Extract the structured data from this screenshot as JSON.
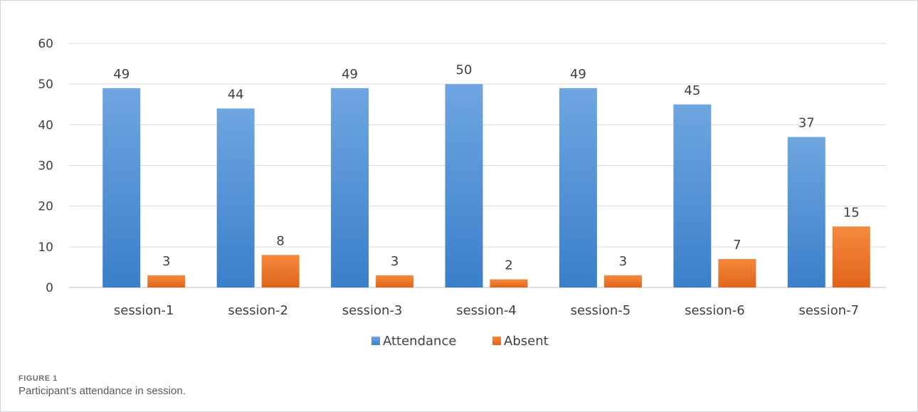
{
  "chart_data": {
    "type": "bar",
    "categories": [
      "session-1",
      "session-2",
      "session-3",
      "session-4",
      "session-5",
      "session-6",
      "session-7"
    ],
    "series": [
      {
        "name": "Attendance",
        "values": [
          49,
          44,
          49,
          50,
          49,
          45,
          37
        ],
        "color": "#4f8fd6"
      },
      {
        "name": "Absent",
        "values": [
          3,
          8,
          3,
          2,
          3,
          7,
          15
        ],
        "color": "#ed7428"
      }
    ],
    "ylim": [
      0,
      60
    ],
    "yticks": [
      0,
      10,
      20,
      30,
      40,
      50,
      60
    ],
    "grid": true,
    "legend": "bottom",
    "data_labels": true
  },
  "caption": {
    "label": "FIGURE 1",
    "text": "Participant’s attendance in session."
  }
}
